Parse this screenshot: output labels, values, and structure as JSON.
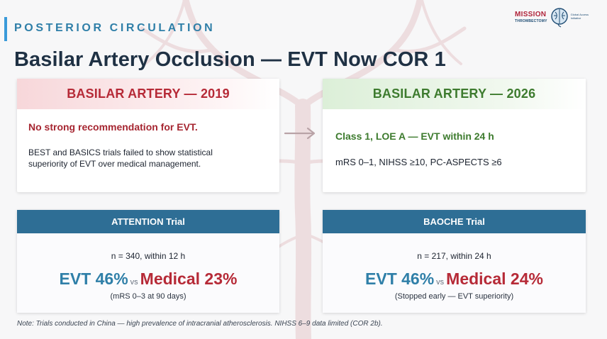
{
  "header": {
    "eyebrow": "POSTERIOR CIRCULATION",
    "title": "Basilar Artery Occlusion — EVT Now COR 1"
  },
  "logo": {
    "word": "MISSION",
    "sub": "THROMBECTOMY",
    "icon": "brain-icon",
    "tag": "Global Access Initiative"
  },
  "cards": {
    "y2019": {
      "heading": "BASILAR ARTERY — 2019",
      "lead": "No strong recommendation for EVT.",
      "body": "BEST and BASICS trials failed to show statistical superiority of EVT over medical management."
    },
    "y2026": {
      "heading": "BASILAR ARTERY — 2026",
      "lead": "Class 1, LOE A — EVT within 24 h",
      "body": "mRS 0–1, NIHSS ≥10, PC-ASPECTS ≥6"
    },
    "arrow_icon": "arrow-right-icon"
  },
  "trials": [
    {
      "name": "ATTENTION Trial",
      "n": "n = 340, within 12 h",
      "evt": "EVT 46%",
      "vs": "vs",
      "medical": "Medical 23%",
      "note": "(mRS 0–3 at 90 days)"
    },
    {
      "name": "BAOCHE Trial",
      "n": "n = 217, within 24 h",
      "evt": "EVT 46%",
      "vs": "vs",
      "medical": "Medical 24%",
      "note": "(Stopped early — EVT superiority)"
    }
  ],
  "footnote": "Note: Trials conducted in China — high prevalence of intracranial atherosclerosis. NIHSS 6–9 data limited (COR 2b).",
  "colors": {
    "accent": "#3a9ad9",
    "title": "#1f3144",
    "red": "#b62a37",
    "green": "#3d7b2e",
    "trial_header": "#2e6e95",
    "evt_blue": "#2f7fa8"
  }
}
